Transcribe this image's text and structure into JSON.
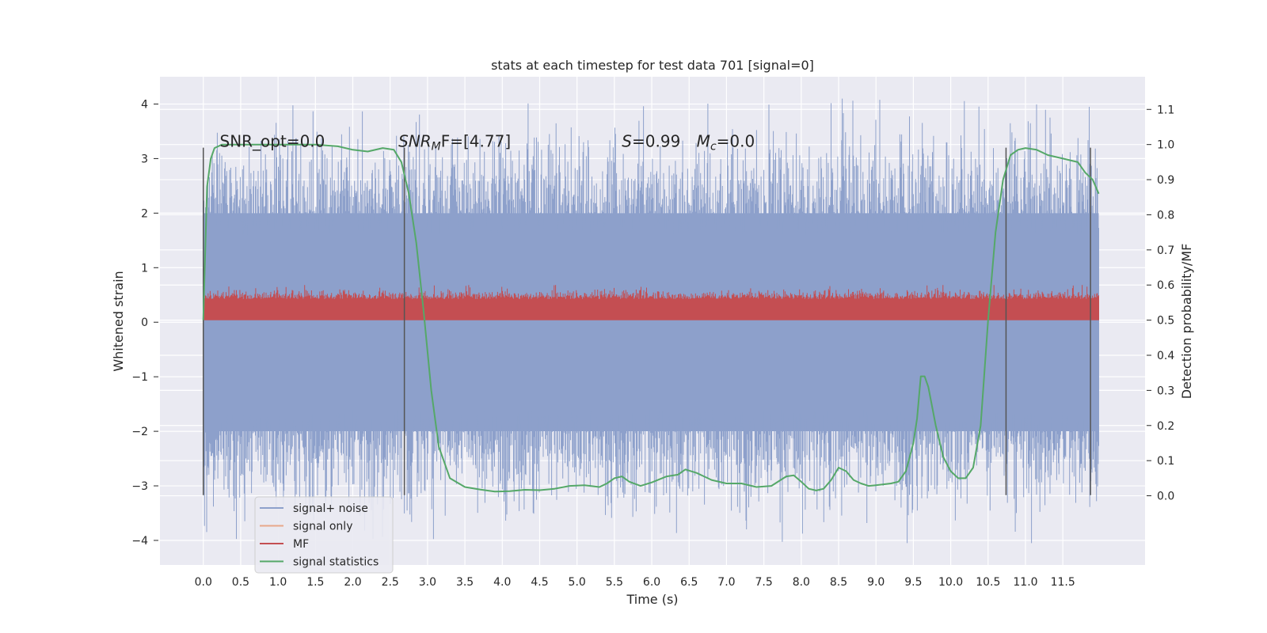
{
  "chart_data": {
    "type": "line",
    "title": "stats at each timestep for test data 701 [signal=0]",
    "xlabel": "Time (s)",
    "ylabel": "Whitened strain",
    "y2label": "Detection probability/MF",
    "xlim": [
      -0.58,
      12.6
    ],
    "ylim": [
      -4.45,
      4.5
    ],
    "y2lim": [
      -0.197,
      1.193
    ],
    "xticks": [
      "0.0",
      "0.5",
      "1.0",
      "1.5",
      "2.0",
      "2.5",
      "3.0",
      "3.5",
      "4.0",
      "4.5",
      "5.0",
      "5.5",
      "6.0",
      "6.5",
      "7.0",
      "7.5",
      "8.0",
      "8.5",
      "9.0",
      "9.5",
      "10.0",
      "10.5",
      "11.0",
      "11.5"
    ],
    "yticks": [
      -4,
      -3,
      -2,
      -1,
      0,
      1,
      2,
      3,
      4
    ],
    "y2ticks": [
      0.0,
      0.1,
      0.2,
      0.3,
      0.4,
      0.5,
      0.6,
      0.7,
      0.8,
      0.9,
      1.0,
      1.1
    ],
    "grid": true,
    "legend_position": "lower-left",
    "annotations": [
      {
        "text": "SNR_opt=0.0",
        "x": 0.22,
        "y": 3.32
      },
      {
        "text": "SNR",
        "sub": "M",
        "rest": "F=[4.77]",
        "italic": true,
        "x": 2.61,
        "y": 3.32
      },
      {
        "text": "S",
        "rest": "=0.99",
        "italic": true,
        "x": 5.6,
        "y": 3.32
      },
      {
        "text": "M",
        "sub": "c",
        "rest": "=0.0",
        "italic": true,
        "x": 6.6,
        "y": 3.32
      }
    ],
    "vertical_lines": [
      0.0,
      2.69,
      10.74,
      11.87
    ],
    "vertical_line_range": [
      -3.17,
      3.2
    ],
    "series": [
      {
        "name": "signal+ noise",
        "color": "#8da0cb",
        "kind": "noise",
        "x_range": [
          0.0,
          11.98
        ],
        "typical_amplitude": [
          -2.0,
          2.0
        ],
        "max": 4.1,
        "min": -4.05
      },
      {
        "name": "signal only",
        "color": "#e8a88a",
        "kind": "flat",
        "value": 0.0
      },
      {
        "name": "MF",
        "color": "#c44e52",
        "kind": "band",
        "x_range": [
          0.0,
          11.98
        ],
        "axis": "y2",
        "band": [
          0.505,
          0.56
        ],
        "max": 0.6
      },
      {
        "name": "signal statistics",
        "color": "#55a868",
        "kind": "curve",
        "axis": "y2",
        "x": [
          0.0,
          0.05,
          0.1,
          0.15,
          0.25,
          0.5,
          1.0,
          1.5,
          1.8,
          2.0,
          2.2,
          2.4,
          2.55,
          2.65,
          2.75,
          2.85,
          2.95,
          3.05,
          3.15,
          3.3,
          3.5,
          3.7,
          3.9,
          4.1,
          4.3,
          4.5,
          4.7,
          4.9,
          5.1,
          5.3,
          5.4,
          5.5,
          5.6,
          5.7,
          5.85,
          6.0,
          6.2,
          6.35,
          6.45,
          6.6,
          6.8,
          7.0,
          7.2,
          7.4,
          7.6,
          7.8,
          7.9,
          8.0,
          8.1,
          8.2,
          8.3,
          8.4,
          8.5,
          8.6,
          8.7,
          8.8,
          8.9,
          9.0,
          9.2,
          9.3,
          9.4,
          9.5,
          9.55,
          9.6,
          9.65,
          9.7,
          9.8,
          9.9,
          10.0,
          10.1,
          10.2,
          10.3,
          10.4,
          10.5,
          10.6,
          10.7,
          10.8,
          10.9,
          11.0,
          11.15,
          11.3,
          11.5,
          11.7,
          11.8,
          11.9,
          11.98
        ],
        "values": [
          0.5,
          0.88,
          0.96,
          0.99,
          1.0,
          1.0,
          1.0,
          1.0,
          0.995,
          0.985,
          0.98,
          0.99,
          0.985,
          0.95,
          0.86,
          0.72,
          0.52,
          0.3,
          0.14,
          0.05,
          0.025,
          0.018,
          0.012,
          0.013,
          0.017,
          0.016,
          0.02,
          0.028,
          0.03,
          0.025,
          0.035,
          0.05,
          0.055,
          0.04,
          0.028,
          0.038,
          0.055,
          0.06,
          0.075,
          0.065,
          0.045,
          0.035,
          0.035,
          0.025,
          0.028,
          0.055,
          0.058,
          0.04,
          0.02,
          0.015,
          0.02,
          0.045,
          0.08,
          0.07,
          0.045,
          0.035,
          0.028,
          0.03,
          0.035,
          0.04,
          0.07,
          0.15,
          0.22,
          0.34,
          0.34,
          0.31,
          0.2,
          0.11,
          0.07,
          0.05,
          0.05,
          0.08,
          0.2,
          0.5,
          0.75,
          0.9,
          0.97,
          0.985,
          0.99,
          0.985,
          0.97,
          0.96,
          0.95,
          0.92,
          0.9,
          0.86
        ]
      }
    ]
  }
}
